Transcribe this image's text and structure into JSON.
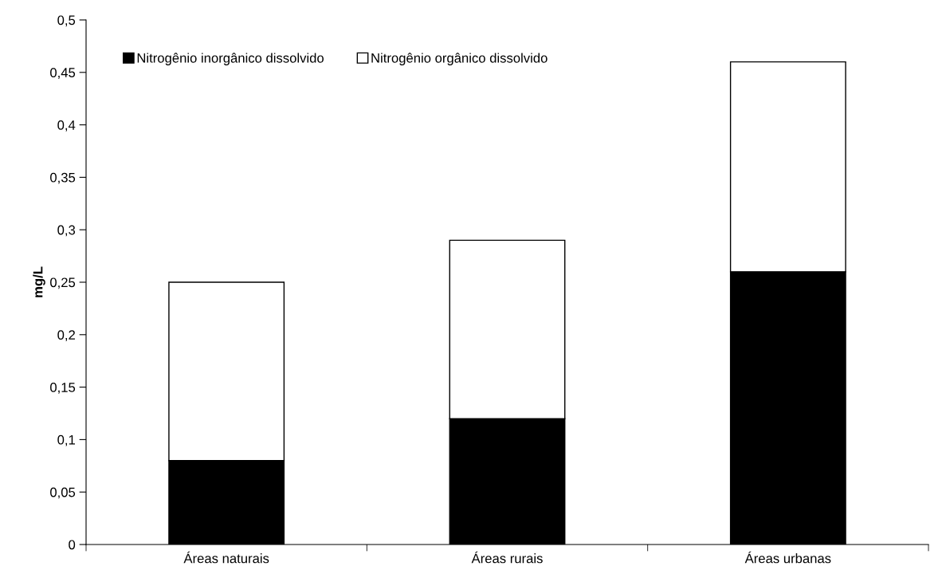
{
  "chart_data": {
    "type": "bar",
    "stacked": true,
    "ylabel": "mg/L",
    "categories": [
      "Áreas naturais",
      "Áreas rurais",
      "Áreas urbanas"
    ],
    "series": [
      {
        "name": "Nitrogênio inorgânico dissolvido",
        "color": "#000000",
        "values": [
          0.08,
          0.12,
          0.26
        ]
      },
      {
        "name": "Nitrogênio orgânico dissolvido",
        "color": "#ffffff",
        "values": [
          0.17,
          0.17,
          0.2
        ]
      }
    ],
    "ylim": [
      0,
      0.5
    ],
    "yticks": [
      0,
      {
        "value": 0.05,
        "label": "0,05"
      },
      {
        "value": 0.1,
        "label": "0,1"
      },
      {
        "value": 0.15,
        "label": "0,15"
      },
      {
        "value": 0.2,
        "label": "0,2"
      },
      {
        "value": 0.25,
        "label": "0,25"
      },
      {
        "value": 0.3,
        "label": "0,3"
      },
      {
        "value": 0.35,
        "label": "0,35"
      },
      {
        "value": 0.4,
        "label": "0,4"
      },
      {
        "value": 0.45,
        "label": "0,45"
      },
      {
        "value": 0.5,
        "label": "0,5"
      }
    ],
    "grid": false,
    "legend": "top left"
  }
}
